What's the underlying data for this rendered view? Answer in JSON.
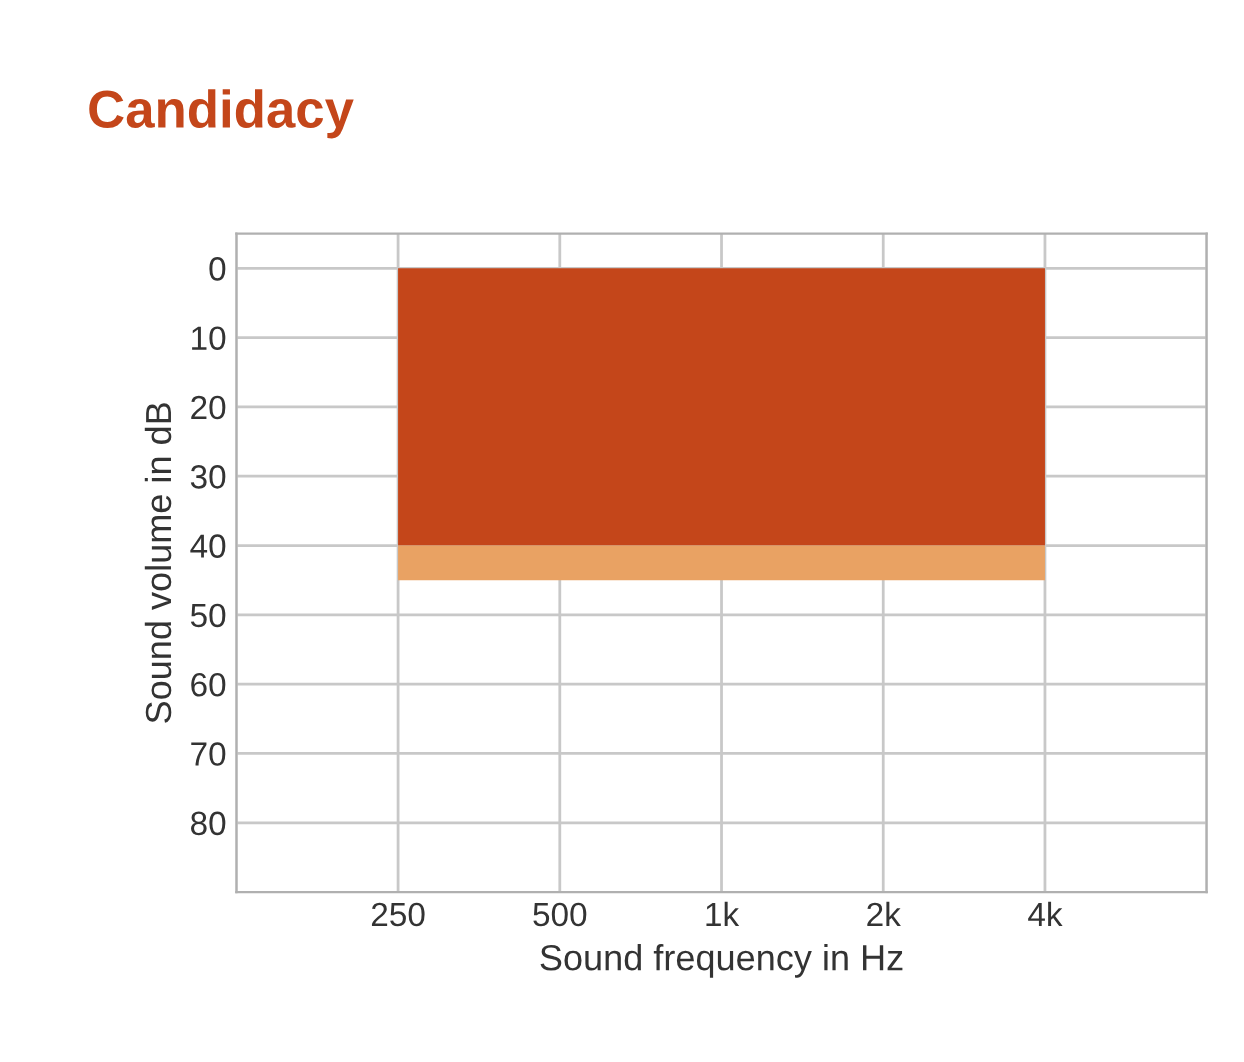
{
  "chart_data": {
    "type": "area",
    "title": "Candidacy",
    "xlabel": "Sound frequency in Hz",
    "ylabel": "Sound volume in dB",
    "categories": [
      "250",
      "500",
      "1k",
      "2k",
      "4k"
    ],
    "stacked": true,
    "series": [
      {
        "color": "#c4461a",
        "values": [
          40,
          40,
          40,
          40,
          40
        ]
      },
      {
        "color": "#e9a263",
        "values": [
          5,
          5,
          5,
          5,
          5
        ]
      }
    ],
    "ylim": [
      90,
      -5
    ],
    "yticks": [
      0,
      10,
      20,
      30,
      40,
      50,
      60,
      70,
      80
    ],
    "grid": true
  }
}
